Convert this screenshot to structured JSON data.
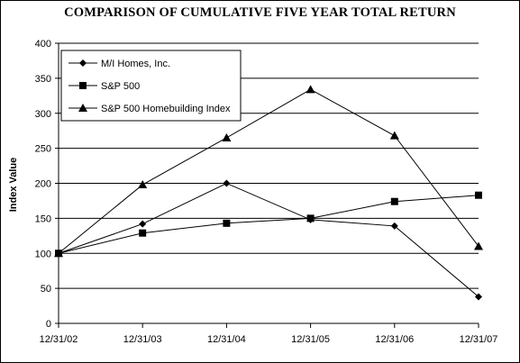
{
  "chart_data": {
    "type": "line",
    "title": "COMPARISON OF CUMULATIVE FIVE YEAR TOTAL RETURN",
    "xlabel": "",
    "ylabel": "Index Value",
    "categories": [
      "12/31/02",
      "12/31/03",
      "12/31/04",
      "12/31/05",
      "12/31/06",
      "12/31/07"
    ],
    "ylim": [
      0,
      400
    ],
    "yticks": [
      0,
      50,
      100,
      150,
      200,
      250,
      300,
      350,
      400
    ],
    "grid": true,
    "legend_position": "top-left",
    "series": [
      {
        "name": "M/I Homes, Inc.",
        "marker": "diamond",
        "values": [
          100,
          142,
          200,
          148,
          139,
          38
        ]
      },
      {
        "name": "S&P 500",
        "marker": "square",
        "values": [
          100,
          129,
          143,
          150,
          174,
          183
        ]
      },
      {
        "name": "S&P 500 Homebuilding Index",
        "marker": "triangle",
        "values": [
          100,
          198,
          265,
          334,
          268,
          110
        ]
      }
    ]
  }
}
